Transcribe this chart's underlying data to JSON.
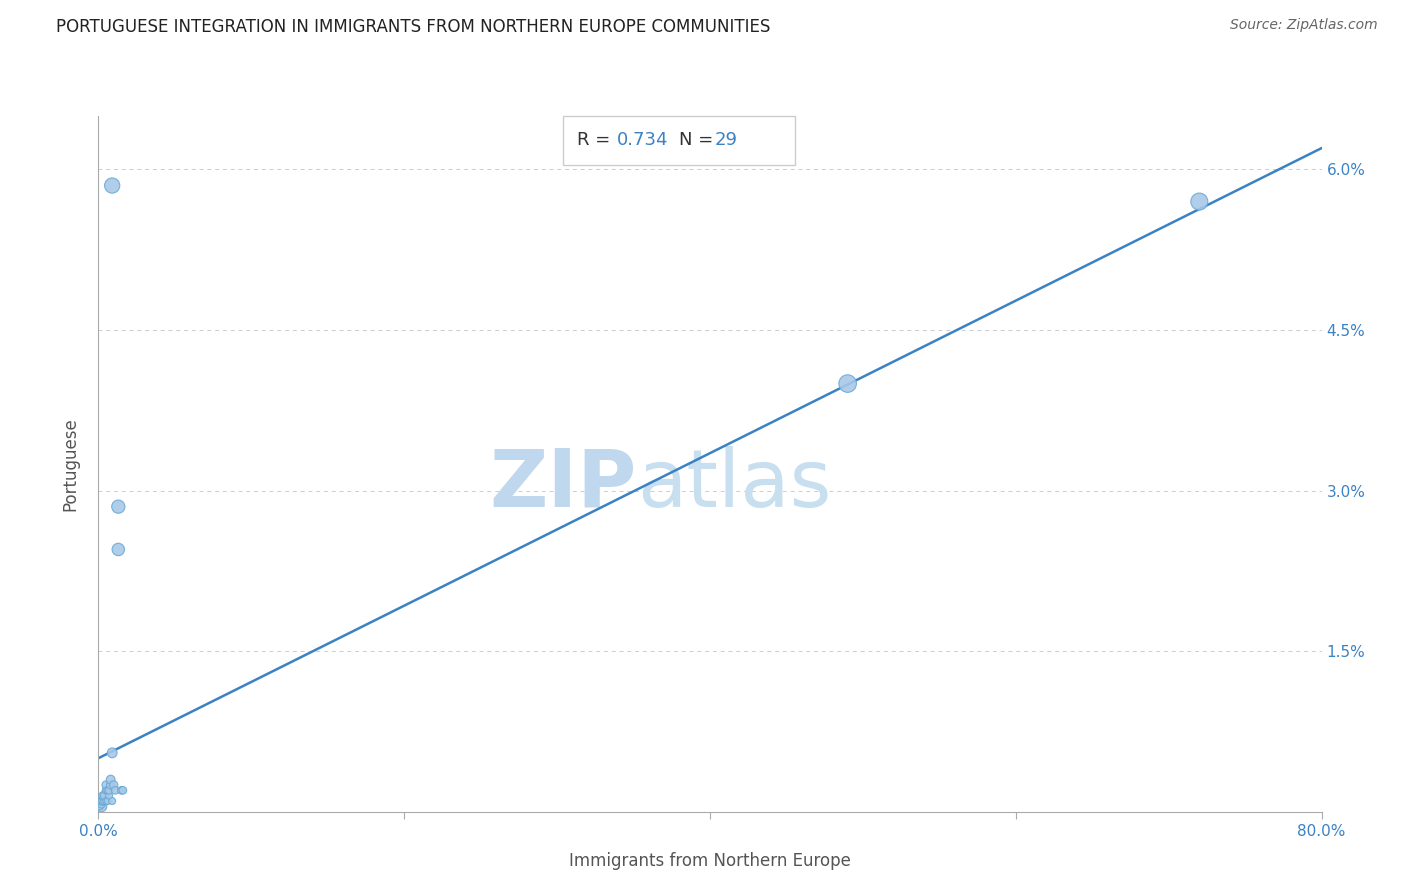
{
  "title": "PORTUGUESE INTEGRATION IN IMMIGRANTS FROM NORTHERN EUROPE COMMUNITIES",
  "source": "Source: ZipAtlas.com",
  "xlabel": "Immigrants from Northern Europe",
  "ylabel": "Portuguese",
  "R": 0.734,
  "N": 29,
  "xlim": [
    0.0,
    0.8
  ],
  "ylim": [
    0.0,
    0.065
  ],
  "xticks": [
    0.0,
    0.2,
    0.4,
    0.6,
    0.8
  ],
  "xtick_labels": [
    "0.0%",
    "",
    "",
    "",
    "80.0%"
  ],
  "yticks": [
    0.0,
    0.015,
    0.03,
    0.045,
    0.06
  ],
  "ytick_labels": [
    "",
    "1.5%",
    "3.0%",
    "4.5%",
    "6.0%"
  ],
  "scatter_color": "#a8c8e8",
  "scatter_edge_color": "#6aaad4",
  "line_color": "#3b82c4",
  "grid_color": "#cccccc",
  "watermark_ZIP_color": "#c0d8ee",
  "watermark_atlas_color": "#c8dff0",
  "title_color": "#222222",
  "title_fontsize": 12,
  "source_color": "#666666",
  "source_fontsize": 10,
  "x_data": [
    0.002,
    0.009,
    0.001,
    0.002,
    0.002,
    0.003,
    0.003,
    0.003,
    0.004,
    0.004,
    0.005,
    0.005,
    0.005,
    0.006,
    0.006,
    0.007,
    0.007,
    0.008,
    0.008,
    0.009,
    0.01,
    0.011,
    0.013,
    0.013,
    0.015,
    0.016,
    0.009,
    0.49,
    0.72
  ],
  "y_data": [
    0.0005,
    0.0585,
    0.0005,
    0.0007,
    0.001,
    0.001,
    0.001,
    0.0015,
    0.001,
    0.0015,
    0.001,
    0.002,
    0.0025,
    0.001,
    0.002,
    0.0015,
    0.002,
    0.0025,
    0.003,
    0.0055,
    0.0025,
    0.002,
    0.0285,
    0.0245,
    0.002,
    0.002,
    0.001,
    0.04,
    0.057
  ],
  "bubble_sizes": [
    60,
    120,
    25,
    30,
    35,
    30,
    35,
    35,
    30,
    35,
    25,
    30,
    35,
    25,
    30,
    25,
    30,
    35,
    40,
    50,
    35,
    30,
    90,
    80,
    30,
    30,
    25,
    160,
    150
  ],
  "line_x": [
    0.0,
    0.8
  ],
  "line_y": [
    0.005,
    0.062
  ]
}
